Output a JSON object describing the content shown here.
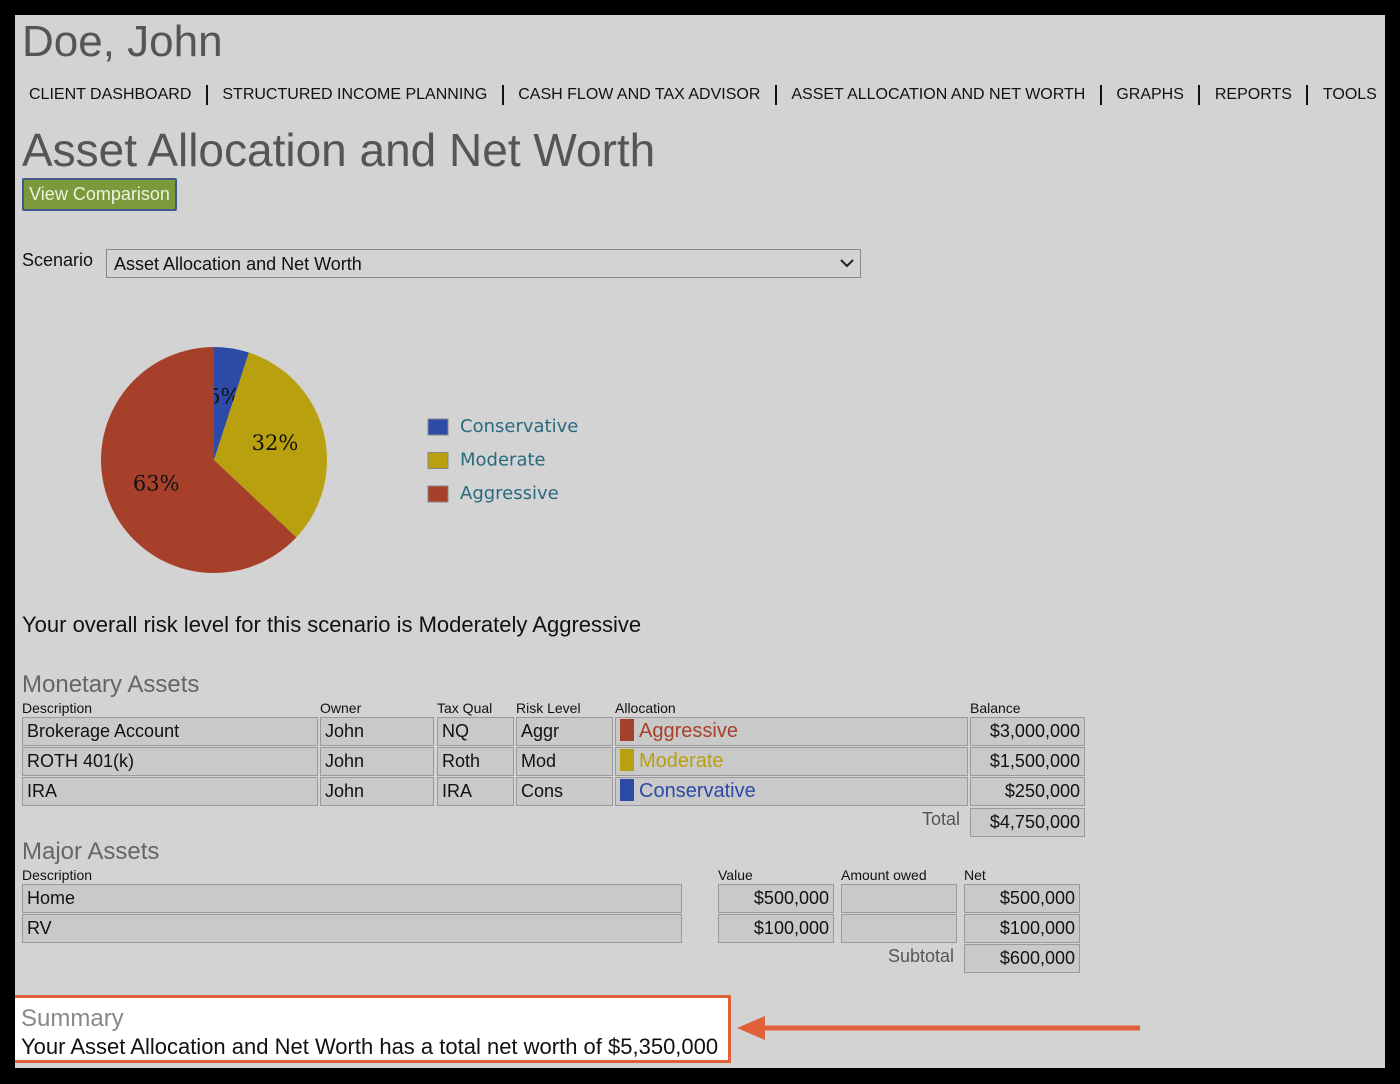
{
  "header": {
    "client_name": "Doe, John",
    "nav": [
      "CLIENT DASHBOARD",
      "STRUCTURED INCOME PLANNING",
      "CASH FLOW AND TAX ADVISOR",
      "ASSET ALLOCATION AND NET WORTH",
      "GRAPHS",
      "REPORTS",
      "TOOLS"
    ]
  },
  "page": {
    "title": "Asset Allocation and Net Worth",
    "button": "View Comparison",
    "scenario_label": "Scenario",
    "scenario_value": "Asset Allocation and Net Worth"
  },
  "chart_data": {
    "type": "pie",
    "categories": [
      "Conservative",
      "Moderate",
      "Aggressive"
    ],
    "values": [
      5,
      32,
      63
    ],
    "value_labels": [
      "5%",
      "32%",
      "63%"
    ],
    "colors": [
      "#2d4aa6",
      "#b9a00f",
      "#a7402b"
    ]
  },
  "risk_text": "Your overall risk level for this scenario is Moderately Aggressive",
  "monetary_assets": {
    "title": "Monetary Assets",
    "columns": [
      "Description",
      "Owner",
      "Tax Qual",
      "Risk Level",
      "Allocation",
      "Balance"
    ],
    "rows": [
      [
        "Brokerage Account",
        "John",
        "NQ",
        "Aggr",
        "Aggressive",
        "$3,000,000"
      ],
      [
        "ROTH 401(k)",
        "John",
        "Roth",
        "Mod",
        "Moderate",
        "$1,500,000"
      ],
      [
        "IRA",
        "John",
        "IRA",
        "Cons",
        "Conservative",
        "$250,000"
      ]
    ],
    "total_label": "Total",
    "total": "$4,750,000"
  },
  "major_assets": {
    "title": "Major Assets",
    "columns": [
      "Description",
      "Value",
      "Amount owed",
      "Net"
    ],
    "rows": [
      {
        "description": "Home",
        "value": "$500,000",
        "net": "$500,000"
      },
      {
        "description": "RV",
        "value": "$100,000",
        "net": "$100,000"
      }
    ],
    "subtotal_label": "Subtotal",
    "subtotal": "$600,000"
  },
  "summary": {
    "title": "Summary",
    "text": "Your Asset Allocation and Net Worth has a total net worth of $5,350,000"
  }
}
